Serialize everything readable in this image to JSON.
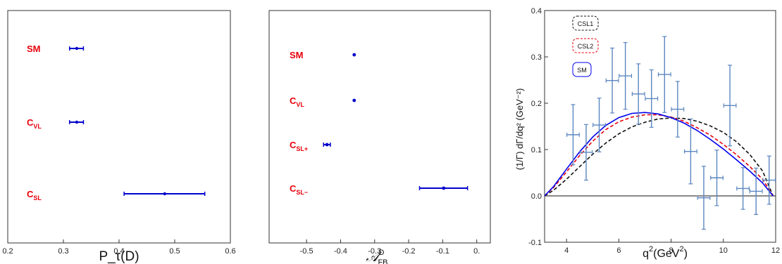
{
  "chart_data": [
    {
      "type": "errorbar",
      "xlabel": "P_τ(D)",
      "xlim": [
        0.2,
        0.6
      ],
      "xticks": [
        "0.2",
        "0.3",
        "0.4",
        "0.5",
        "0.6"
      ],
      "series_color": "#0000cc",
      "label_color": "#e8000b",
      "categories": [
        {
          "main": "SM",
          "sub": "",
          "value": 0.324,
          "low": 0.311,
          "high": 0.336
        },
        {
          "main": "C",
          "sub": "VL",
          "value": 0.324,
          "low": 0.311,
          "high": 0.336
        },
        {
          "main": "C",
          "sub": "SL",
          "value": 0.482,
          "low": 0.409,
          "high": 0.554
        }
      ]
    },
    {
      "type": "errorbar",
      "xlabel": "𝒜",
      "xlabel_sup": "D",
      "xlabel_sub": "FB",
      "xlim": [
        -0.61,
        0.04
      ],
      "xticks": [
        "-0.5",
        "-0.4",
        "-0.3",
        "-0.2",
        "-0.1",
        "0."
      ],
      "series_color": "#0000cc",
      "label_color": "#e8000b",
      "categories": [
        {
          "main": "SM",
          "sub": "",
          "value": -0.36,
          "low": -0.36,
          "high": -0.36
        },
        {
          "main": "C",
          "sub": "VL",
          "value": -0.36,
          "low": -0.36,
          "high": -0.36
        },
        {
          "main": "C",
          "sub": "SL+",
          "value": -0.44,
          "low": -0.45,
          "high": -0.43
        },
        {
          "main": "C",
          "sub": "SL−",
          "value": -0.097,
          "low": -0.168,
          "high": -0.027
        }
      ]
    },
    {
      "type": "line",
      "xlabel": "q",
      "xlabel_sup": "2",
      "xlabel_rest": "(GeV",
      "xlabel_rest_sup": "2",
      "xlabel_close": ")",
      "ylabel": "(1/Γ) dΓ/dq² (GeV⁻²)",
      "xlim": [
        3.16,
        12.0
      ],
      "ylim": [
        -0.1,
        0.4
      ],
      "xticks": [
        "4",
        "6",
        "8",
        "10",
        "12"
      ],
      "yticks": [
        "-0.1",
        "0.0",
        "0.1",
        "0.2",
        "0.3",
        "0.4"
      ],
      "legend": [
        "CSL1",
        "CSL2",
        "SM"
      ],
      "series": [
        {
          "name": "SM",
          "color": "#0000ee",
          "dash": "solid",
          "x": [
            3.16,
            3.5,
            4,
            4.5,
            5,
            5.5,
            6,
            6.5,
            7,
            7.5,
            8,
            8.5,
            9,
            9.5,
            10,
            10.5,
            11,
            11.5,
            11.9
          ],
          "y": [
            0.0,
            0.02,
            0.058,
            0.095,
            0.127,
            0.152,
            0.169,
            0.178,
            0.18,
            0.177,
            0.169,
            0.157,
            0.141,
            0.122,
            0.101,
            0.078,
            0.054,
            0.028,
            0.0
          ]
        },
        {
          "name": "CSL2",
          "color": "#e8000b",
          "dash": "dashed",
          "x": [
            3.16,
            3.5,
            4,
            4.5,
            5,
            5.5,
            6,
            6.5,
            7,
            7.5,
            8,
            8.5,
            9,
            9.5,
            10,
            10.5,
            11,
            11.5,
            11.9
          ],
          "y": [
            0.0,
            0.018,
            0.052,
            0.087,
            0.118,
            0.143,
            0.16,
            0.17,
            0.175,
            0.175,
            0.17,
            0.161,
            0.147,
            0.131,
            0.111,
            0.089,
            0.064,
            0.036,
            0.0
          ]
        },
        {
          "name": "CSL1",
          "color": "#111111",
          "dash": "dashed",
          "x": [
            3.16,
            3.5,
            4,
            4.5,
            5,
            5.5,
            6,
            6.5,
            7,
            7.5,
            8,
            8.5,
            9,
            9.5,
            10,
            10.5,
            11,
            11.5,
            11.9
          ],
          "y": [
            0.0,
            0.012,
            0.036,
            0.063,
            0.09,
            0.114,
            0.134,
            0.149,
            0.159,
            0.166,
            0.168,
            0.167,
            0.161,
            0.151,
            0.137,
            0.117,
            0.09,
            0.054,
            0.0
          ]
        }
      ],
      "data_points": {
        "color": "#5b86c0",
        "x": [
          4.25,
          4.75,
          5.25,
          5.75,
          6.25,
          6.75,
          7.25,
          7.75,
          8.25,
          8.75,
          9.25,
          9.75,
          10.25,
          10.75,
          11.25,
          11.75
        ],
        "y": [
          0.132,
          0.094,
          0.153,
          0.249,
          0.259,
          0.22,
          0.21,
          0.262,
          0.187,
          0.096,
          -0.004,
          0.039,
          0.195,
          0.016,
          0.01,
          0.034
        ],
        "yerr": [
          0.065,
          0.06,
          0.058,
          0.07,
          0.072,
          0.065,
          0.062,
          0.082,
          0.06,
          0.07,
          0.068,
          0.06,
          0.087,
          0.045,
          0.05,
          0.052
        ]
      }
    }
  ]
}
